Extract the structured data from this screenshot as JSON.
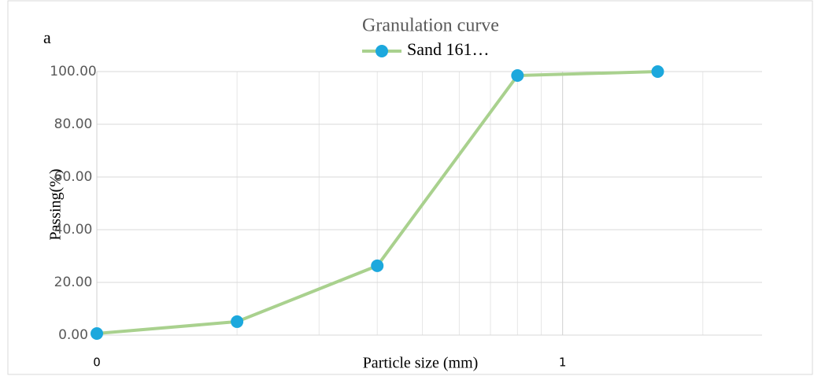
{
  "chart_data": {
    "type": "line",
    "panel_label": "a",
    "title": "Granulation curve",
    "x_label": "Particle size (mm)",
    "y_label": "Passing(%)",
    "x_log": true,
    "x": [
      0.1,
      0.2,
      0.4,
      0.8,
      1.6
    ],
    "series": [
      {
        "name": "Sand 161…",
        "color": "#a9d18e",
        "marker_color": "#1ca8dd",
        "values": [
          0.6,
          5.1,
          26.3,
          98.5,
          100
        ]
      }
    ],
    "xlim": [
      0.1,
      2.68
    ],
    "xticks": [
      {
        "value": 0.1,
        "label": "0"
      },
      {
        "value": 1,
        "label": "1"
      }
    ],
    "xminorticks": [
      0.2,
      0.3,
      0.4,
      0.5,
      0.6,
      0.7,
      0.8,
      0.9,
      2
    ],
    "ylim": [
      0,
      100
    ],
    "yticks": [
      {
        "value": 0,
        "label": "0.00"
      },
      {
        "value": 20,
        "label": "20.00"
      },
      {
        "value": 40,
        "label": "40.00"
      },
      {
        "value": 60,
        "label": "60.00"
      },
      {
        "value": 80,
        "label": "80.00"
      },
      {
        "value": 100,
        "label": "100.00"
      }
    ],
    "grid": true,
    "legend": "top"
  }
}
